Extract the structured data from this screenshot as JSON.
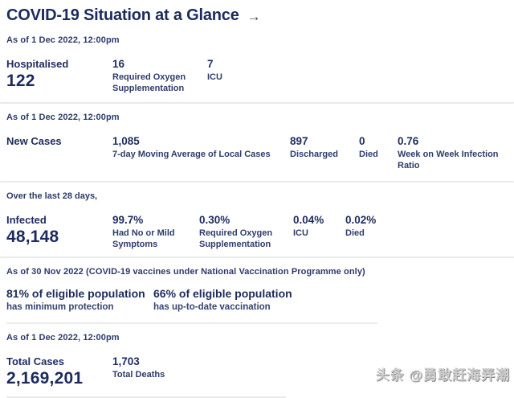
{
  "header": {
    "title": "COVID-19 Situation at a Glance",
    "arrow": "→"
  },
  "sections": {
    "hospitalised": {
      "as_of": "As of 1 Dec 2022, 12:00pm",
      "label": "Hospitalised",
      "value": "122",
      "stats": [
        {
          "value": "16",
          "label": "Required Oxygen Supplementation"
        },
        {
          "value": "7",
          "label": "ICU"
        }
      ]
    },
    "new_cases": {
      "as_of": "As of 1 Dec 2022, 12:00pm",
      "label": "New Cases",
      "stats": [
        {
          "value": "1,085",
          "label": "7-day Moving Average of Local Cases"
        },
        {
          "value": "897",
          "label": "Discharged"
        },
        {
          "value": "0",
          "label": "Died"
        },
        {
          "value": "0.76",
          "label": "Week on Week Infection Ratio"
        }
      ]
    },
    "infected": {
      "period": "Over the last 28 days,",
      "label": "Infected",
      "value": "48,148",
      "stats": [
        {
          "value": "99.7%",
          "label": "Had No or Mild Symptoms"
        },
        {
          "value": "0.30%",
          "label": "Required Oxygen Supplementation"
        },
        {
          "value": "0.04%",
          "label": "ICU"
        },
        {
          "value": "0.02%",
          "label": "Died"
        }
      ]
    },
    "vaccination": {
      "as_of": "As of 30 Nov 2022 (COVID-19 vaccines under National Vaccination Programme only)",
      "stats": [
        {
          "headline": "81% of eligible population",
          "sub": "has minimum protection"
        },
        {
          "headline": "66% of eligible population",
          "sub": "has up-to-date vaccination"
        }
      ]
    },
    "totals": {
      "as_of": "As of 1 Dec 2022, 12:00pm",
      "label": "Total Cases",
      "value": "2,169,201",
      "stats": [
        {
          "value": "1,703",
          "label": "Total Deaths"
        }
      ]
    }
  },
  "watermark": "头条 @勇敢赶海弄潮",
  "colors": {
    "navy": "#1c2b5e",
    "divider": "#e9e9e9"
  }
}
